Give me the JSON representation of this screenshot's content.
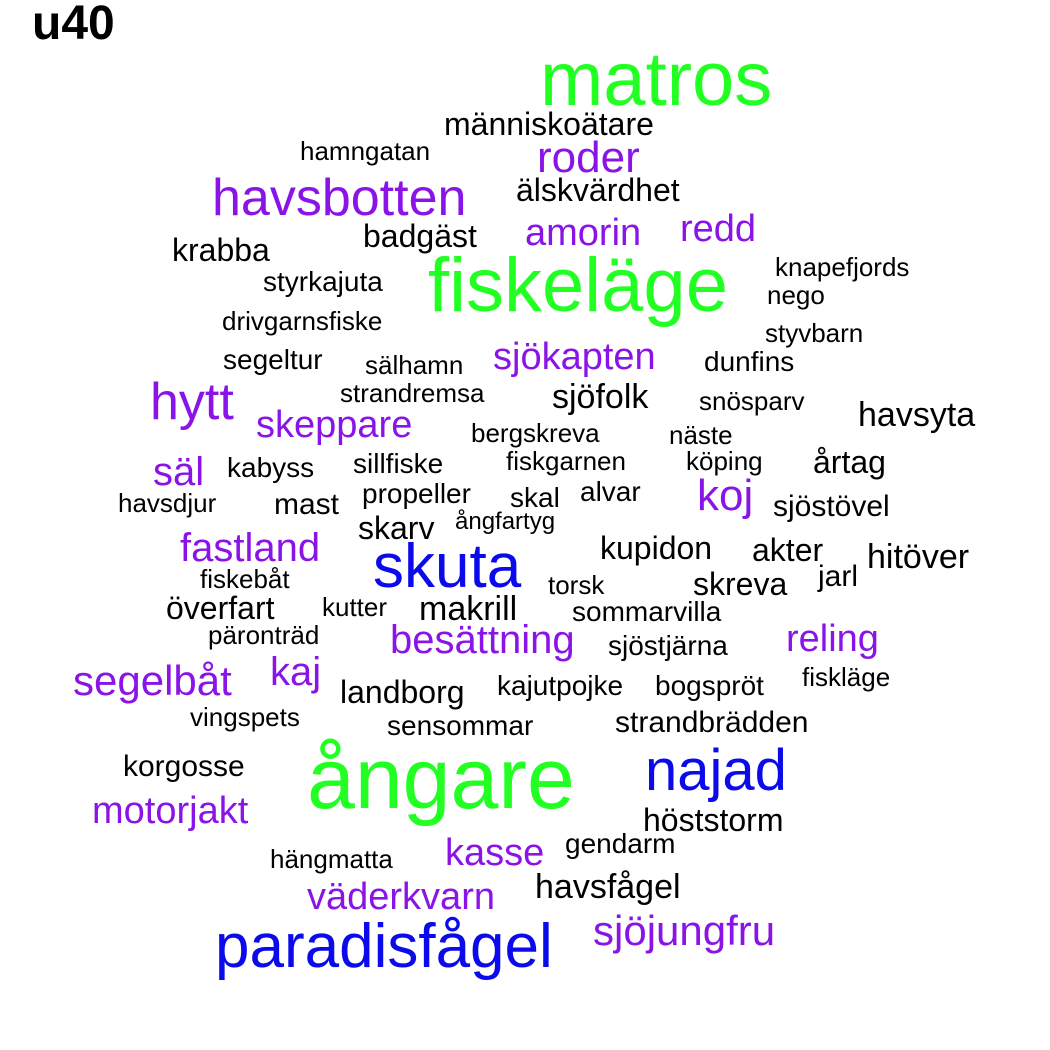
{
  "title": "u40",
  "colors": {
    "black": "#000000",
    "purple": "#8a14e8",
    "green": "#22ff22",
    "blue": "#0a0aeb"
  },
  "words": [
    {
      "text": "matros",
      "color": "green"
    },
    {
      "text": "människoätare",
      "color": "black"
    },
    {
      "text": "hamngatan",
      "color": "black"
    },
    {
      "text": "roder",
      "color": "purple"
    },
    {
      "text": "havsbotten",
      "color": "purple"
    },
    {
      "text": "älskvärdhet",
      "color": "black"
    },
    {
      "text": "badgäst",
      "color": "black"
    },
    {
      "text": "amorin",
      "color": "purple"
    },
    {
      "text": "redd",
      "color": "purple"
    },
    {
      "text": "krabba",
      "color": "black"
    },
    {
      "text": "knapefjords",
      "color": "black"
    },
    {
      "text": "fiskeläge",
      "color": "green"
    },
    {
      "text": "styrkajuta",
      "color": "black"
    },
    {
      "text": "nego",
      "color": "black"
    },
    {
      "text": "drivgarnsfiske",
      "color": "black"
    },
    {
      "text": "styvbarn",
      "color": "black"
    },
    {
      "text": "sjökapten",
      "color": "purple"
    },
    {
      "text": "segeltur",
      "color": "black"
    },
    {
      "text": "sälhamn",
      "color": "black"
    },
    {
      "text": "dunfins",
      "color": "black"
    },
    {
      "text": "strandremsa",
      "color": "black"
    },
    {
      "text": "hytt",
      "color": "purple"
    },
    {
      "text": "sjöfolk",
      "color": "black"
    },
    {
      "text": "snösparv",
      "color": "black"
    },
    {
      "text": "havsyta",
      "color": "black"
    },
    {
      "text": "skeppare",
      "color": "purple"
    },
    {
      "text": "bergskreva",
      "color": "black"
    },
    {
      "text": "näste",
      "color": "black"
    },
    {
      "text": "säl",
      "color": "purple"
    },
    {
      "text": "kabyss",
      "color": "black"
    },
    {
      "text": "sillfiske",
      "color": "black"
    },
    {
      "text": "fiskgarnen",
      "color": "black"
    },
    {
      "text": "köping",
      "color": "black"
    },
    {
      "text": "årtag",
      "color": "black"
    },
    {
      "text": "havsdjur",
      "color": "black"
    },
    {
      "text": "mast",
      "color": "black"
    },
    {
      "text": "propeller",
      "color": "black"
    },
    {
      "text": "skal",
      "color": "black"
    },
    {
      "text": "alvar",
      "color": "black"
    },
    {
      "text": "koj",
      "color": "purple"
    },
    {
      "text": "sjöstövel",
      "color": "black"
    },
    {
      "text": "skarv",
      "color": "black"
    },
    {
      "text": "ångfartyg",
      "color": "black"
    },
    {
      "text": "fastland",
      "color": "purple"
    },
    {
      "text": "kupidon",
      "color": "black"
    },
    {
      "text": "akter",
      "color": "black"
    },
    {
      "text": "hitöver",
      "color": "black"
    },
    {
      "text": "skuta",
      "color": "blue"
    },
    {
      "text": "fiskebåt",
      "color": "black"
    },
    {
      "text": "torsk",
      "color": "black"
    },
    {
      "text": "skreva",
      "color": "black"
    },
    {
      "text": "jarl",
      "color": "black"
    },
    {
      "text": "överfart",
      "color": "black"
    },
    {
      "text": "kutter",
      "color": "black"
    },
    {
      "text": "makrill",
      "color": "black"
    },
    {
      "text": "sommarvilla",
      "color": "black"
    },
    {
      "text": "päronträd",
      "color": "black"
    },
    {
      "text": "besättning",
      "color": "purple"
    },
    {
      "text": "sjöstjärna",
      "color": "black"
    },
    {
      "text": "reling",
      "color": "purple"
    },
    {
      "text": "kaj",
      "color": "purple"
    },
    {
      "text": "segelbåt",
      "color": "purple"
    },
    {
      "text": "landborg",
      "color": "black"
    },
    {
      "text": "kajutpojke",
      "color": "black"
    },
    {
      "text": "bogspröt",
      "color": "black"
    },
    {
      "text": "fiskläge",
      "color": "black"
    },
    {
      "text": "vingspets",
      "color": "black"
    },
    {
      "text": "sensommar",
      "color": "black"
    },
    {
      "text": "strandbrädden",
      "color": "black"
    },
    {
      "text": "korgosse",
      "color": "black"
    },
    {
      "text": "ångare",
      "color": "green"
    },
    {
      "text": "najad",
      "color": "blue"
    },
    {
      "text": "motorjakt",
      "color": "purple"
    },
    {
      "text": "höststorm",
      "color": "black"
    },
    {
      "text": "gendarm",
      "color": "black"
    },
    {
      "text": "hängmatta",
      "color": "black"
    },
    {
      "text": "kasse",
      "color": "purple"
    },
    {
      "text": "havsfågel",
      "color": "black"
    },
    {
      "text": "väderkvarn",
      "color": "purple"
    },
    {
      "text": "sjöjungfru",
      "color": "purple"
    },
    {
      "text": "paradisfågel",
      "color": "blue"
    }
  ]
}
